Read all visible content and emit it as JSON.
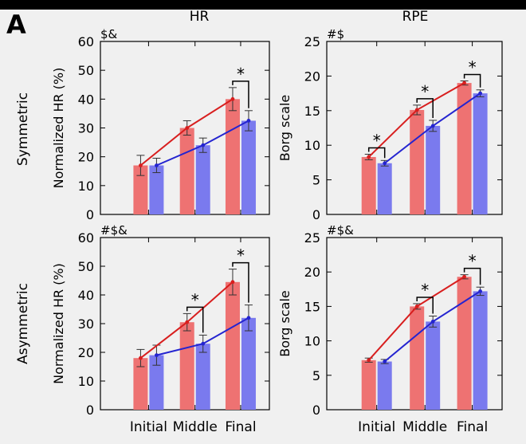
{
  "panel_letter": "A",
  "columns": [
    "HR",
    "RPE"
  ],
  "rows": [
    "Symmetric",
    "Asymmetric"
  ],
  "colors": {
    "red": "#ee7272",
    "blue": "#7a7aee",
    "red_line": "#d81e1e",
    "blue_line": "#2424d0"
  },
  "chart_data": [
    {
      "type": "bar",
      "id": "sym-hr",
      "title": "HR",
      "row": "Symmetric",
      "ylabel": "Normalized HR (%)",
      "ylim": [
        0,
        60
      ],
      "yticks": [
        0,
        10,
        20,
        30,
        40,
        50,
        60
      ],
      "categories": [
        "Initial",
        "Middle",
        "Final"
      ],
      "corner_label": "$&",
      "series": [
        {
          "color": "red",
          "values": [
            17,
            30,
            40
          ],
          "errors": [
            3.5,
            2.5,
            4
          ]
        },
        {
          "color": "blue",
          "values": [
            17,
            24,
            32.5
          ],
          "errors": [
            2.5,
            2.5,
            3.5
          ]
        }
      ],
      "significance": [
        false,
        false,
        true
      ]
    },
    {
      "type": "bar",
      "id": "sym-rpe",
      "title": "RPE",
      "row": "Symmetric",
      "ylabel": "Borg scale",
      "ylim": [
        0,
        25
      ],
      "yticks": [
        0,
        5,
        10,
        15,
        20,
        25
      ],
      "categories": [
        "Initial",
        "Middle",
        "Final"
      ],
      "corner_label": "#$",
      "series": [
        {
          "color": "red",
          "values": [
            8.3,
            15.1,
            19
          ],
          "errors": [
            0.4,
            0.7,
            0.3
          ]
        },
        {
          "color": "blue",
          "values": [
            7.4,
            12.8,
            17.5
          ],
          "errors": [
            0.4,
            0.8,
            0.5
          ]
        }
      ],
      "significance": [
        true,
        true,
        true
      ]
    },
    {
      "type": "bar",
      "id": "asym-hr",
      "title": "",
      "row": "Asymmetric",
      "ylabel": "Normalized HR (%)",
      "ylim": [
        0,
        60
      ],
      "yticks": [
        0,
        10,
        20,
        30,
        40,
        50,
        60
      ],
      "categories": [
        "Initial",
        "Middle",
        "Final"
      ],
      "corner_label": "#$&",
      "series": [
        {
          "color": "red",
          "values": [
            18,
            30.5,
            44.5
          ],
          "errors": [
            3,
            3,
            4.5
          ]
        },
        {
          "color": "blue",
          "values": [
            19,
            23,
            32
          ],
          "errors": [
            3.5,
            3,
            4.5
          ]
        }
      ],
      "significance": [
        false,
        true,
        true
      ]
    },
    {
      "type": "bar",
      "id": "asym-rpe",
      "title": "",
      "row": "Asymmetric",
      "ylabel": "Borg scale",
      "ylim": [
        0,
        25
      ],
      "yticks": [
        0,
        5,
        10,
        15,
        20,
        25
      ],
      "categories": [
        "Initial",
        "Middle",
        "Final"
      ],
      "corner_label": "#$&",
      "series": [
        {
          "color": "red",
          "values": [
            7.2,
            15,
            19.3
          ],
          "errors": [
            0.3,
            0.4,
            0.3
          ]
        },
        {
          "color": "blue",
          "values": [
            7,
            12.8,
            17.2
          ],
          "errors": [
            0.3,
            0.8,
            0.6
          ]
        }
      ],
      "significance": [
        false,
        true,
        true
      ]
    }
  ],
  "significance_marker": "*"
}
